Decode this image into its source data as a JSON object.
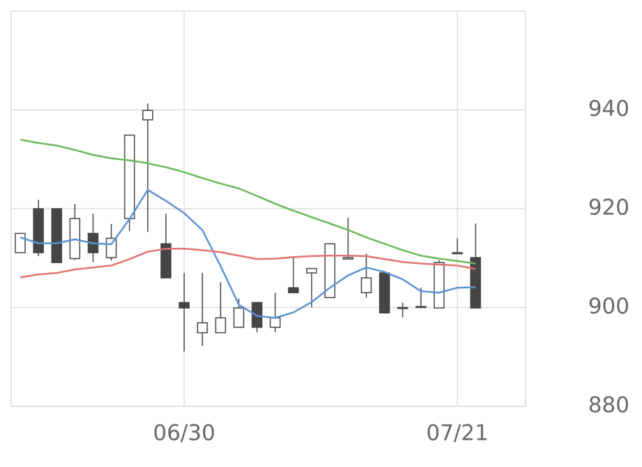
{
  "chart_data": {
    "type": "candlestick",
    "categories": [
      null,
      null,
      null,
      null,
      null,
      null,
      null,
      null,
      null,
      "06/30",
      null,
      null,
      null,
      null,
      null,
      null,
      null,
      null,
      null,
      null,
      null,
      null,
      null,
      null,
      "07/21",
      null
    ],
    "open": [
      911.1,
      920.0,
      920.0,
      909.9,
      915.0,
      910.1,
      918.0,
      938.0,
      912.9,
      901.0,
      894.9,
      894.9,
      896.0,
      901.0,
      896.0,
      904.0,
      907.0,
      902.0,
      909.8,
      903.0,
      907.0,
      900.0,
      900.0,
      899.9,
      910.9,
      910.1
    ],
    "high": [
      915.0,
      921.8,
      920.0,
      921.0,
      919.0,
      916.9,
      934.9,
      941.3,
      919.0,
      907.0,
      907.0,
      905.1,
      901.8,
      901.0,
      903.0,
      910.1,
      907.9,
      912.9,
      918.2,
      910.9,
      907.0,
      901.0,
      904.0,
      909.6,
      914.0,
      917.0
    ],
    "low": [
      911.1,
      910.4,
      909.1,
      909.6,
      909.2,
      909.5,
      915.5,
      915.3,
      906.0,
      891.1,
      892.2,
      894.9,
      896.0,
      895.0,
      895.0,
      903.0,
      900.0,
      902.0,
      909.8,
      902.0,
      898.9,
      898.0,
      900.0,
      899.9,
      910.9,
      899.9
    ],
    "close": [
      915.0,
      911.1,
      909.1,
      918.0,
      911.1,
      914.0,
      934.9,
      939.9,
      906.0,
      899.9,
      896.9,
      897.9,
      899.9,
      896.0,
      897.9,
      903.0,
      907.9,
      912.9,
      910.1,
      906.0,
      898.9,
      900.0,
      900.2,
      909.1,
      911.1,
      899.9
    ],
    "up_color": "#ffffff",
    "down_color": "#454545",
    "edge_color": "#454545",
    "series": [
      {
        "color": "#5b93d3",
        "values": [
          914.2,
          913.0,
          913.0,
          913.8,
          913.0,
          912.8,
          917.9,
          923.8,
          921.6,
          919.1,
          915.7,
          908.4,
          900.6,
          898.3,
          897.9,
          899.0,
          901.1,
          904.0,
          906.5,
          908.1,
          907.2,
          905.7,
          903.3,
          903.0,
          904.0,
          904.1
        ]
      },
      {
        "color": "#e07272",
        "values": [
          906.1,
          906.7,
          907.0,
          907.7,
          908.1,
          908.5,
          909.8,
          911.3,
          911.9,
          911.9,
          911.6,
          911.2,
          910.5,
          909.8,
          909.9,
          910.2,
          910.4,
          910.5,
          910.5,
          910.4,
          909.8,
          909.2,
          908.9,
          908.7,
          908.5,
          907.8
        ]
      },
      {
        "color": "#6ab85a",
        "values": [
          934.0,
          933.3,
          932.8,
          931.9,
          930.9,
          930.2,
          929.8,
          929.2,
          928.4,
          927.4,
          926.2,
          925.1,
          924.1,
          922.6,
          921.0,
          919.6,
          918.3,
          917.0,
          915.7,
          914.2,
          912.9,
          911.6,
          910.5,
          909.9,
          909.4,
          908.9
        ]
      }
    ],
    "ylim": [
      880,
      960
    ],
    "yticks": [
      880,
      900,
      920,
      940
    ],
    "grid": true
  }
}
